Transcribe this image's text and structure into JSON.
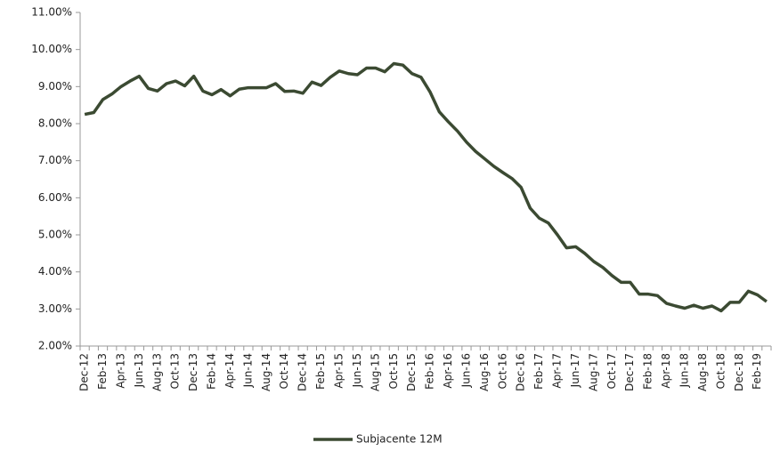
{
  "chart_data": {
    "type": "line",
    "categories": [
      "Dec-12",
      null,
      "Feb-13",
      null,
      "Apr-13",
      null,
      "Jun-13",
      null,
      "Aug-13",
      null,
      "Oct-13",
      null,
      "Dec-13",
      null,
      "Feb-14",
      null,
      "Apr-14",
      null,
      "Jun-14",
      null,
      "Aug-14",
      null,
      "Oct-14",
      null,
      "Dec-14",
      null,
      "Feb-15",
      null,
      "Apr-15",
      null,
      "Jun-15",
      null,
      "Aug-15",
      null,
      "Oct-15",
      null,
      "Dec-15",
      null,
      "Feb-16",
      null,
      "Apr-16",
      null,
      "Jun-16",
      null,
      "Aug-16",
      null,
      "Oct-16",
      null,
      "Dec-16",
      null,
      "Feb-17",
      null,
      "Apr-17",
      null,
      "Jun-17",
      null,
      "Aug-17",
      null,
      "Oct-17",
      null,
      "Dec-17",
      null,
      "Feb-18",
      null,
      "Apr-18",
      null,
      "Jun-18",
      null,
      "Aug-18",
      null,
      "Oct-18",
      null,
      "Dec-18",
      null,
      "Feb-19",
      null
    ],
    "series": [
      {
        "name": "Subjacente 12M",
        "color": "#3b4a32",
        "values": [
          8.25,
          8.3,
          8.65,
          8.8,
          9.0,
          9.15,
          9.28,
          8.95,
          8.88,
          9.08,
          9.15,
          9.02,
          9.28,
          8.88,
          8.78,
          8.92,
          8.75,
          8.93,
          8.97,
          8.97,
          8.97,
          9.08,
          8.87,
          8.88,
          8.82,
          9.12,
          9.03,
          9.25,
          9.42,
          9.35,
          9.32,
          9.5,
          9.5,
          9.4,
          9.62,
          9.58,
          9.35,
          9.25,
          8.85,
          8.32,
          8.05,
          7.8,
          7.5,
          7.25,
          7.05,
          6.85,
          6.68,
          6.52,
          6.28,
          5.72,
          5.45,
          5.32,
          5.0,
          4.65,
          4.68,
          4.5,
          4.28,
          4.12,
          3.9,
          3.72,
          3.72,
          3.4,
          3.4,
          3.36,
          3.15,
          3.08,
          3.02,
          3.1,
          3.02,
          3.08,
          2.95,
          3.18,
          3.18,
          3.48,
          3.38,
          3.2
        ]
      }
    ],
    "ylim": [
      2,
      11
    ],
    "yticks": [
      {
        "value": 2,
        "label": "2.00%"
      },
      {
        "value": 3,
        "label": "3.00%"
      },
      {
        "value": 4,
        "label": "4.00%"
      },
      {
        "value": 5,
        "label": "5.00%"
      },
      {
        "value": 6,
        "label": "6.00%"
      },
      {
        "value": 7,
        "label": "7.00%"
      },
      {
        "value": 8,
        "label": "8.00%"
      },
      {
        "value": 9,
        "label": "9.00%"
      },
      {
        "value": 10,
        "label": "10.00%"
      },
      {
        "value": 11,
        "label": "11.00%"
      }
    ],
    "grid": false,
    "legend": "bottom"
  }
}
